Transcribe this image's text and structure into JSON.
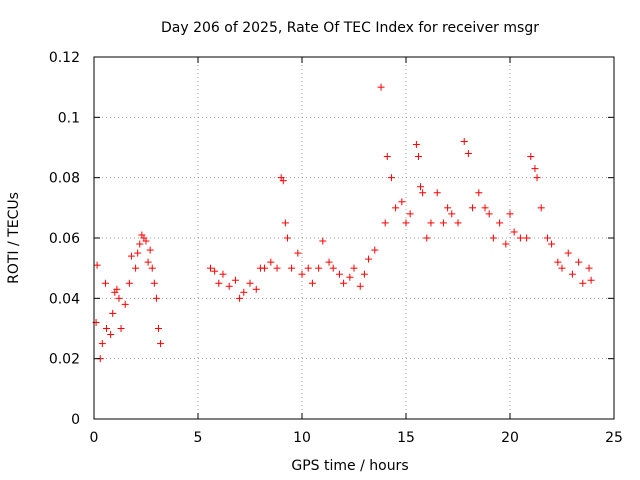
{
  "chart_data": {
    "type": "scatter",
    "title": "Day 206 of 2025, Rate Of TEC Index for receiver msgr",
    "xlabel": "GPS time / hours",
    "ylabel": "ROTI / TECUs",
    "xlim": [
      0,
      25
    ],
    "ylim": [
      0,
      0.12
    ],
    "xticks": [
      0,
      5,
      10,
      15,
      20,
      25
    ],
    "yticks": [
      0,
      0.02,
      0.04,
      0.06,
      0.08,
      0.1,
      0.12
    ],
    "xtick_labels": [
      "0",
      "5",
      "10",
      "15",
      "20",
      "25"
    ],
    "ytick_labels": [
      "0",
      "0.02",
      "0.04",
      "0.06",
      "0.08",
      "0.1",
      "0.12"
    ],
    "grid": true,
    "marker": "+",
    "color": "#ff0000",
    "series": [
      {
        "x": [
          0.1,
          0.15,
          0.3,
          0.4,
          0.55,
          0.6,
          0.8,
          0.9,
          1.0,
          1.1,
          1.2,
          1.3,
          1.5,
          1.7,
          1.8,
          2.0,
          2.1,
          2.2,
          2.3,
          2.4,
          2.5,
          2.6,
          2.7,
          2.8,
          2.9,
          3.0,
          3.1,
          3.2,
          5.6,
          5.8,
          6.0,
          6.2,
          6.5,
          6.8,
          7.0,
          7.2,
          7.5,
          7.8,
          8.0,
          8.2,
          8.5,
          8.8,
          9.0,
          9.1,
          9.2,
          9.3,
          9.5,
          9.8,
          10.0,
          10.3,
          10.5,
          10.8,
          11.0,
          11.3,
          11.5,
          11.8,
          12.0,
          12.3,
          12.5,
          12.8,
          13.0,
          13.2,
          13.5,
          13.8,
          14.0,
          14.1,
          14.3,
          14.5,
          14.8,
          15.0,
          15.2,
          15.5,
          15.6,
          15.7,
          15.8,
          16.0,
          16.2,
          16.5,
          16.8,
          17.0,
          17.2,
          17.5,
          17.8,
          18.0,
          18.2,
          18.5,
          18.8,
          19.0,
          19.2,
          19.5,
          19.8,
          20.0,
          20.2,
          20.5,
          20.8,
          21.0,
          21.2,
          21.3,
          21.5,
          21.8,
          22.0,
          22.3,
          22.5,
          22.8,
          23.0,
          23.3,
          23.5,
          23.8,
          23.9
        ],
        "y": [
          0.032,
          0.051,
          0.02,
          0.025,
          0.045,
          0.03,
          0.028,
          0.035,
          0.042,
          0.043,
          0.04,
          0.03,
          0.038,
          0.045,
          0.054,
          0.05,
          0.055,
          0.058,
          0.061,
          0.06,
          0.059,
          0.052,
          0.056,
          0.05,
          0.045,
          0.04,
          0.03,
          0.025,
          0.05,
          0.049,
          0.045,
          0.048,
          0.044,
          0.046,
          0.04,
          0.042,
          0.045,
          0.043,
          0.05,
          0.05,
          0.052,
          0.05,
          0.08,
          0.079,
          0.065,
          0.06,
          0.05,
          0.055,
          0.048,
          0.05,
          0.045,
          0.05,
          0.059,
          0.052,
          0.05,
          0.048,
          0.045,
          0.047,
          0.05,
          0.044,
          0.048,
          0.053,
          0.056,
          0.11,
          0.065,
          0.087,
          0.08,
          0.07,
          0.072,
          0.065,
          0.068,
          0.091,
          0.087,
          0.077,
          0.075,
          0.06,
          0.065,
          0.075,
          0.065,
          0.07,
          0.068,
          0.065,
          0.092,
          0.088,
          0.07,
          0.075,
          0.07,
          0.068,
          0.06,
          0.065,
          0.058,
          0.068,
          0.062,
          0.06,
          0.06,
          0.087,
          0.083,
          0.08,
          0.07,
          0.06,
          0.058,
          0.052,
          0.05,
          0.055,
          0.048,
          0.052,
          0.045,
          0.05,
          0.046
        ]
      }
    ]
  }
}
